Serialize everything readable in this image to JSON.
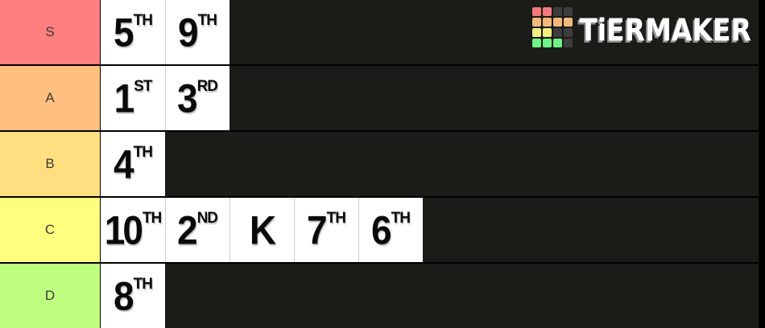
{
  "logo": {
    "brand": "TiERMAKER",
    "grid_colors": [
      "#f4797b",
      "#f4797b",
      "#3d3d3d",
      "#3d3d3d",
      "#f5b87b",
      "#f5b87b",
      "#f5b87b",
      "#f5b87b",
      "#f2ef7a",
      "#f2ef7a",
      "#3d3d3d",
      "#3d3d3d",
      "#6ff287",
      "#6ff287",
      "#6ff287",
      "#3d3d3d"
    ]
  },
  "colors": {
    "row_background": "#1b1b18",
    "separator": "#000000",
    "tile_background": "#ffffff",
    "tile_text": "#0a0a0a"
  },
  "tiers": [
    {
      "label": "S",
      "color": "#ff7f7f",
      "items": [
        {
          "num": "5",
          "suffix": "TH"
        },
        {
          "num": "9",
          "suffix": "TH"
        }
      ]
    },
    {
      "label": "A",
      "color": "#ffbf7f",
      "items": [
        {
          "num": "1",
          "suffix": "ST"
        },
        {
          "num": "3",
          "suffix": "RD"
        }
      ]
    },
    {
      "label": "B",
      "color": "#ffdf7f",
      "items": [
        {
          "num": "4",
          "suffix": "TH"
        }
      ]
    },
    {
      "label": "C",
      "color": "#ffff7f",
      "items": [
        {
          "num": "10",
          "suffix": "TH"
        },
        {
          "num": "2",
          "suffix": "ND"
        },
        {
          "num": "K",
          "suffix": ""
        },
        {
          "num": "7",
          "suffix": "TH"
        },
        {
          "num": "6",
          "suffix": "TH"
        }
      ]
    },
    {
      "label": "D",
      "color": "#bfff7f",
      "items": [
        {
          "num": "8",
          "suffix": "TH"
        }
      ]
    }
  ]
}
